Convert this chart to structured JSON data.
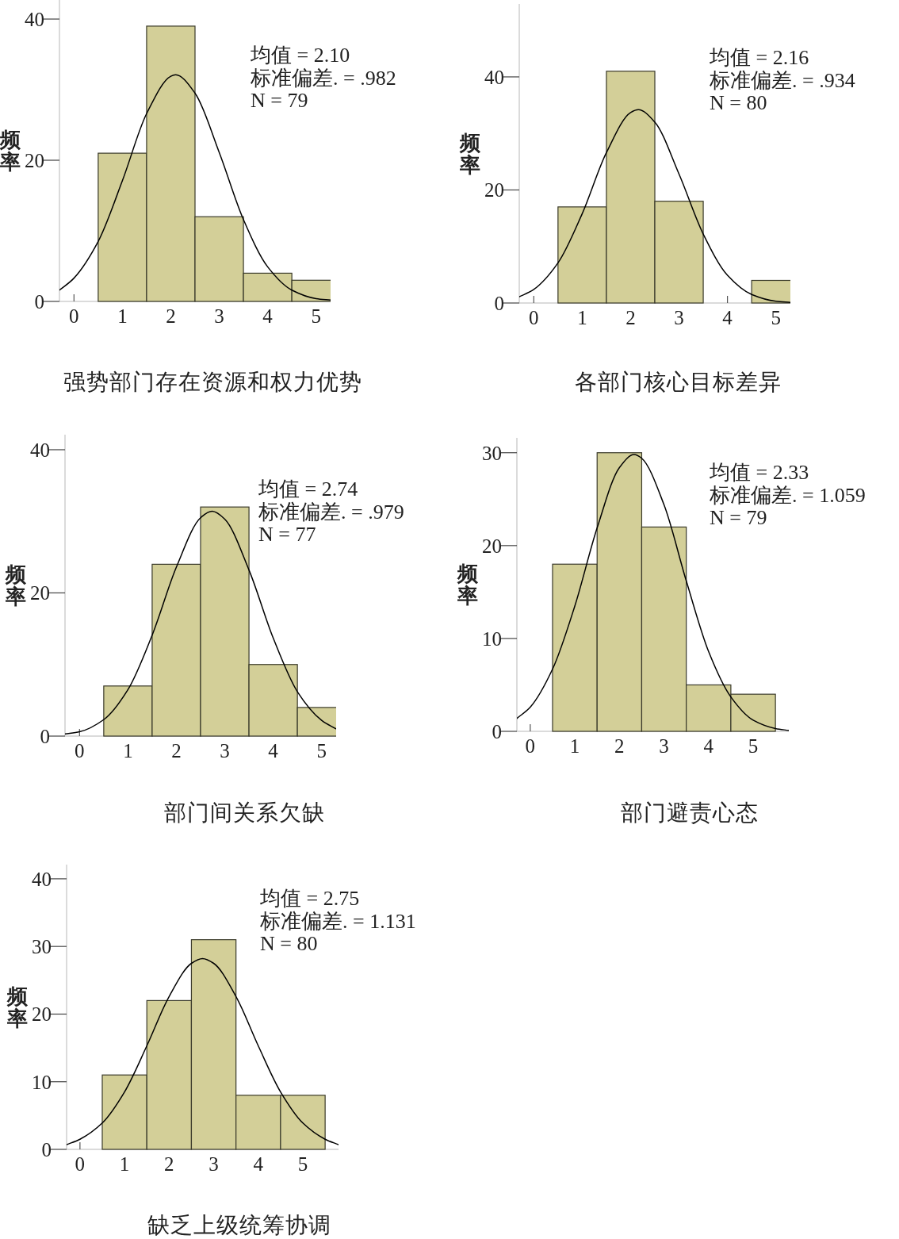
{
  "chart_data": [
    {
      "type": "histogram",
      "xlabel": "强势部门存在资源和权力优势",
      "ylabel": "频率",
      "annotations": [
        "均值 = 2.10",
        "标准偏差. = .982",
        "N = 79"
      ],
      "bins": [
        0.5,
        1.5,
        2.5,
        3.5,
        4.5,
        5.5
      ],
      "values": [
        21,
        39,
        12,
        4,
        3
      ],
      "color": "#d3cf98",
      "xlim": [
        -0.3,
        5.3
      ],
      "ylim": [
        0,
        42.7
      ],
      "xticks": [
        0,
        1,
        2,
        3,
        4,
        5
      ],
      "yticks": [
        0,
        20,
        40
      ],
      "series": [
        {
          "type": "line",
          "color": "#000000",
          "x": [
            -0.3,
            0,
            0.5,
            1,
            1.5,
            2,
            2.1,
            2.5,
            3,
            3.5,
            4,
            4.5,
            5,
            5.3
          ],
          "values": [
            1.6,
            3.3,
            8.5,
            17.1,
            26.6,
            31.9,
            32.1,
            29.5,
            21.1,
            11.6,
            4.9,
            1.6,
            0.4,
            0.2
          ]
        }
      ]
    },
    {
      "type": "histogram",
      "xlabel": "各部门核心目标差异",
      "ylabel": "频率",
      "annotations": [
        "均值 = 2.16",
        "标准偏差. = .934",
        "N = 80"
      ],
      "bins": [
        0.5,
        1.5,
        2.5,
        3.5,
        4.5,
        5.5
      ],
      "values": [
        17,
        41,
        18,
        0,
        4
      ],
      "color": "#d3cf98",
      "xlim": [
        -0.3,
        5.3
      ],
      "ylim": [
        0,
        52.9
      ],
      "xticks": [
        0,
        1,
        2,
        3,
        4,
        5
      ],
      "yticks": [
        0,
        20,
        40
      ],
      "series": [
        {
          "type": "line",
          "color": "#000000",
          "x": [
            -0.3,
            0,
            0.5,
            1,
            1.5,
            2,
            2.16,
            2.5,
            3,
            3.5,
            4,
            4.5,
            5,
            5.3
          ],
          "values": [
            1.1,
            2.4,
            7.1,
            15.8,
            26.6,
            33.7,
            34.2,
            32.0,
            22.8,
            12.2,
            4.9,
            1.5,
            0.3,
            0.1
          ]
        }
      ]
    },
    {
      "type": "histogram",
      "xlabel": "部门间关系欠缺",
      "ylabel": "频率",
      "annotations": [
        "均值 = 2.74",
        "标准偏差. = .979",
        "N = 77"
      ],
      "bins": [
        0.5,
        1.5,
        2.5,
        3.5,
        4.5,
        5.5
      ],
      "values": [
        7,
        24,
        32,
        10,
        4
      ],
      "color": "#d3cf98",
      "xlim": [
        -0.3,
        5.3
      ],
      "ylim": [
        0,
        42.1
      ],
      "xticks": [
        0,
        1,
        2,
        3,
        4,
        5
      ],
      "yticks": [
        0,
        20,
        40
      ],
      "series": [
        {
          "type": "line",
          "color": "#000000",
          "x": [
            -0.3,
            0,
            0.5,
            1,
            1.5,
            2,
            2.5,
            2.74,
            3,
            3.5,
            4,
            4.5,
            5,
            5.3
          ],
          "values": [
            0.3,
            0.6,
            2.3,
            6.5,
            14.1,
            23.6,
            30.5,
            31.4,
            30.3,
            23.2,
            13.7,
            6.2,
            2.2,
            1.0
          ]
        }
      ]
    },
    {
      "type": "histogram",
      "xlabel": "部门避责心态",
      "ylabel": "频率",
      "annotations": [
        "均值 = 2.33",
        "标准偏差. = 1.059",
        "N = 79"
      ],
      "bins": [
        0.5,
        1.5,
        2.5,
        3.5,
        4.5,
        5.5
      ],
      "values": [
        18,
        30,
        22,
        5,
        4
      ],
      "color": "#d3cf98",
      "xlim": [
        -0.3,
        5.8
      ],
      "ylim": [
        0,
        31.6
      ],
      "xticks": [
        0,
        1,
        2,
        3,
        4,
        5
      ],
      "yticks": [
        0,
        10,
        20,
        30
      ],
      "series": [
        {
          "type": "line",
          "color": "#000000",
          "x": [
            -0.3,
            0,
            0.5,
            1,
            1.5,
            2,
            2.33,
            2.5,
            3,
            3.5,
            4,
            4.5,
            5,
            5.5,
            5.8
          ],
          "values": [
            1.4,
            2.6,
            6.7,
            13.5,
            21.9,
            28.4,
            29.8,
            29.4,
            24.4,
            16.2,
            8.6,
            3.7,
            1.2,
            0.3,
            0.1
          ]
        }
      ]
    },
    {
      "type": "histogram",
      "xlabel": "缺乏上级统筹协调",
      "ylabel": "频率",
      "annotations": [
        "均值 = 2.75",
        "标准偏差. = 1.131",
        "N = 80"
      ],
      "bins": [
        0.5,
        1.5,
        2.5,
        3.5,
        4.5,
        5.5
      ],
      "values": [
        11,
        22,
        31,
        8,
        8
      ],
      "color": "#d3cf98",
      "xlim": [
        -0.3,
        5.8
      ],
      "ylim": [
        0,
        42.1
      ],
      "xticks": [
        0,
        1,
        2,
        3,
        4,
        5
      ],
      "yticks": [
        0,
        10,
        20,
        30,
        40
      ],
      "series": [
        {
          "type": "line",
          "color": "#000000",
          "x": [
            -0.3,
            0,
            0.5,
            1,
            1.5,
            2,
            2.5,
            2.75,
            3,
            3.5,
            4,
            4.5,
            5,
            5.5,
            5.8
          ],
          "values": [
            0.7,
            1.5,
            3.9,
            8.5,
            15.3,
            22.6,
            27.5,
            28.2,
            27.5,
            22.6,
            15.3,
            8.5,
            3.9,
            1.5,
            0.7
          ]
        }
      ]
    }
  ]
}
